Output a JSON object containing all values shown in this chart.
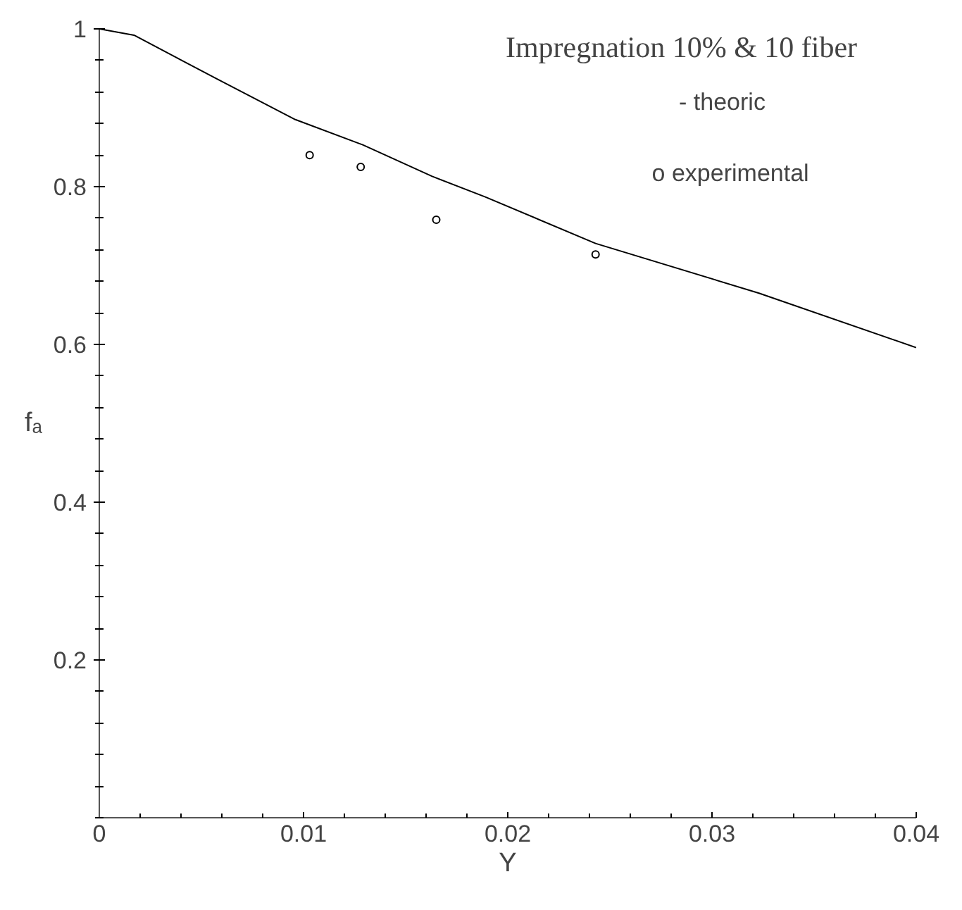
{
  "chart_data": {
    "type": "line",
    "title": "Impregnation 10% & 10 fiber",
    "xlabel": "Y",
    "ylabel": "fₐ",
    "annotations": [
      "- theoric",
      "o experimental"
    ],
    "series": [
      {
        "color": "#000000",
        "x": [
          0,
          0.0017,
          0.0058,
          0.0096,
          0.0129,
          0.0163,
          0.0189,
          0.0243,
          0.0323,
          0.04
        ],
        "values": [
          1.0,
          0.992,
          0.936,
          0.885,
          0.853,
          0.813,
          0.787,
          0.728,
          0.665,
          0.596
        ]
      },
      {
        "type": "scatter",
        "color": "#000000",
        "marker": "circle",
        "x": [
          0.0103,
          0.0128,
          0.0165,
          0.0243
        ],
        "values": [
          0.84,
          0.825,
          0.758,
          0.714
        ]
      }
    ],
    "xlim": [
      0,
      0.04
    ],
    "ylim": [
      0,
      1
    ],
    "xticks": [
      {
        "value": 0,
        "label": "0"
      },
      0.01,
      0.02,
      0.03,
      0.04
    ],
    "yticks": [
      0.2,
      0.4,
      0.6,
      0.8,
      1
    ],
    "grid": false
  }
}
